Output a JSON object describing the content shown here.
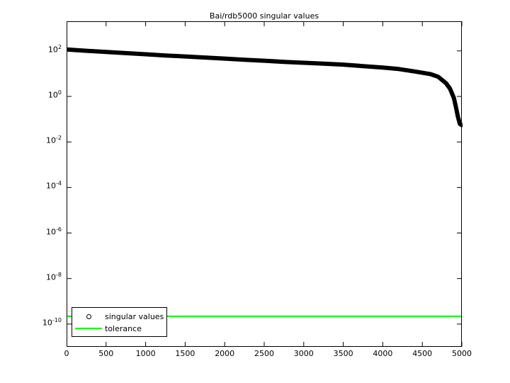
{
  "window": {
    "background": "#ffffff"
  },
  "chart_data": {
    "type": "scatter",
    "title": "Bai/rdb5000 singular values",
    "xlabel": "",
    "ylabel": "",
    "grid": false,
    "axis_color": "#000000",
    "xlim": [
      0,
      5000
    ],
    "ylim_log10": [
      -11,
      3.301
    ],
    "x_ticks": [
      0,
      500,
      1000,
      1500,
      2000,
      2500,
      3000,
      3500,
      4000,
      4500,
      5000
    ],
    "y_tick_exponents": [
      2,
      0,
      -2,
      -4,
      -6,
      -8,
      -10
    ],
    "y_tick_base": "10",
    "legend_position": "southwest",
    "series": [
      {
        "name": "singular values",
        "type": "scatter",
        "marker": "circle",
        "color": "#000000",
        "points": [
          [
            1,
            115
          ],
          [
            250,
            101
          ],
          [
            500,
            90
          ],
          [
            750,
            80
          ],
          [
            1000,
            71
          ],
          [
            1250,
            63
          ],
          [
            1500,
            57
          ],
          [
            1750,
            51
          ],
          [
            2000,
            46
          ],
          [
            2250,
            41
          ],
          [
            2500,
            37
          ],
          [
            2750,
            33
          ],
          [
            3000,
            30
          ],
          [
            3250,
            27.5
          ],
          [
            3500,
            25
          ],
          [
            3750,
            21.5
          ],
          [
            4000,
            18.5
          ],
          [
            4200,
            16
          ],
          [
            4400,
            12.5
          ],
          [
            4600,
            9.6
          ],
          [
            4700,
            7.3
          ],
          [
            4800,
            3.8
          ],
          [
            4850,
            2.2
          ],
          [
            4900,
            0.85
          ],
          [
            4925,
            0.35
          ],
          [
            4950,
            0.13
          ],
          [
            4975,
            0.062
          ],
          [
            5000,
            0.055
          ]
        ]
      },
      {
        "name": "tolerance",
        "type": "hline",
        "color": "#00ff00",
        "value": 2.2e-10
      }
    ]
  }
}
